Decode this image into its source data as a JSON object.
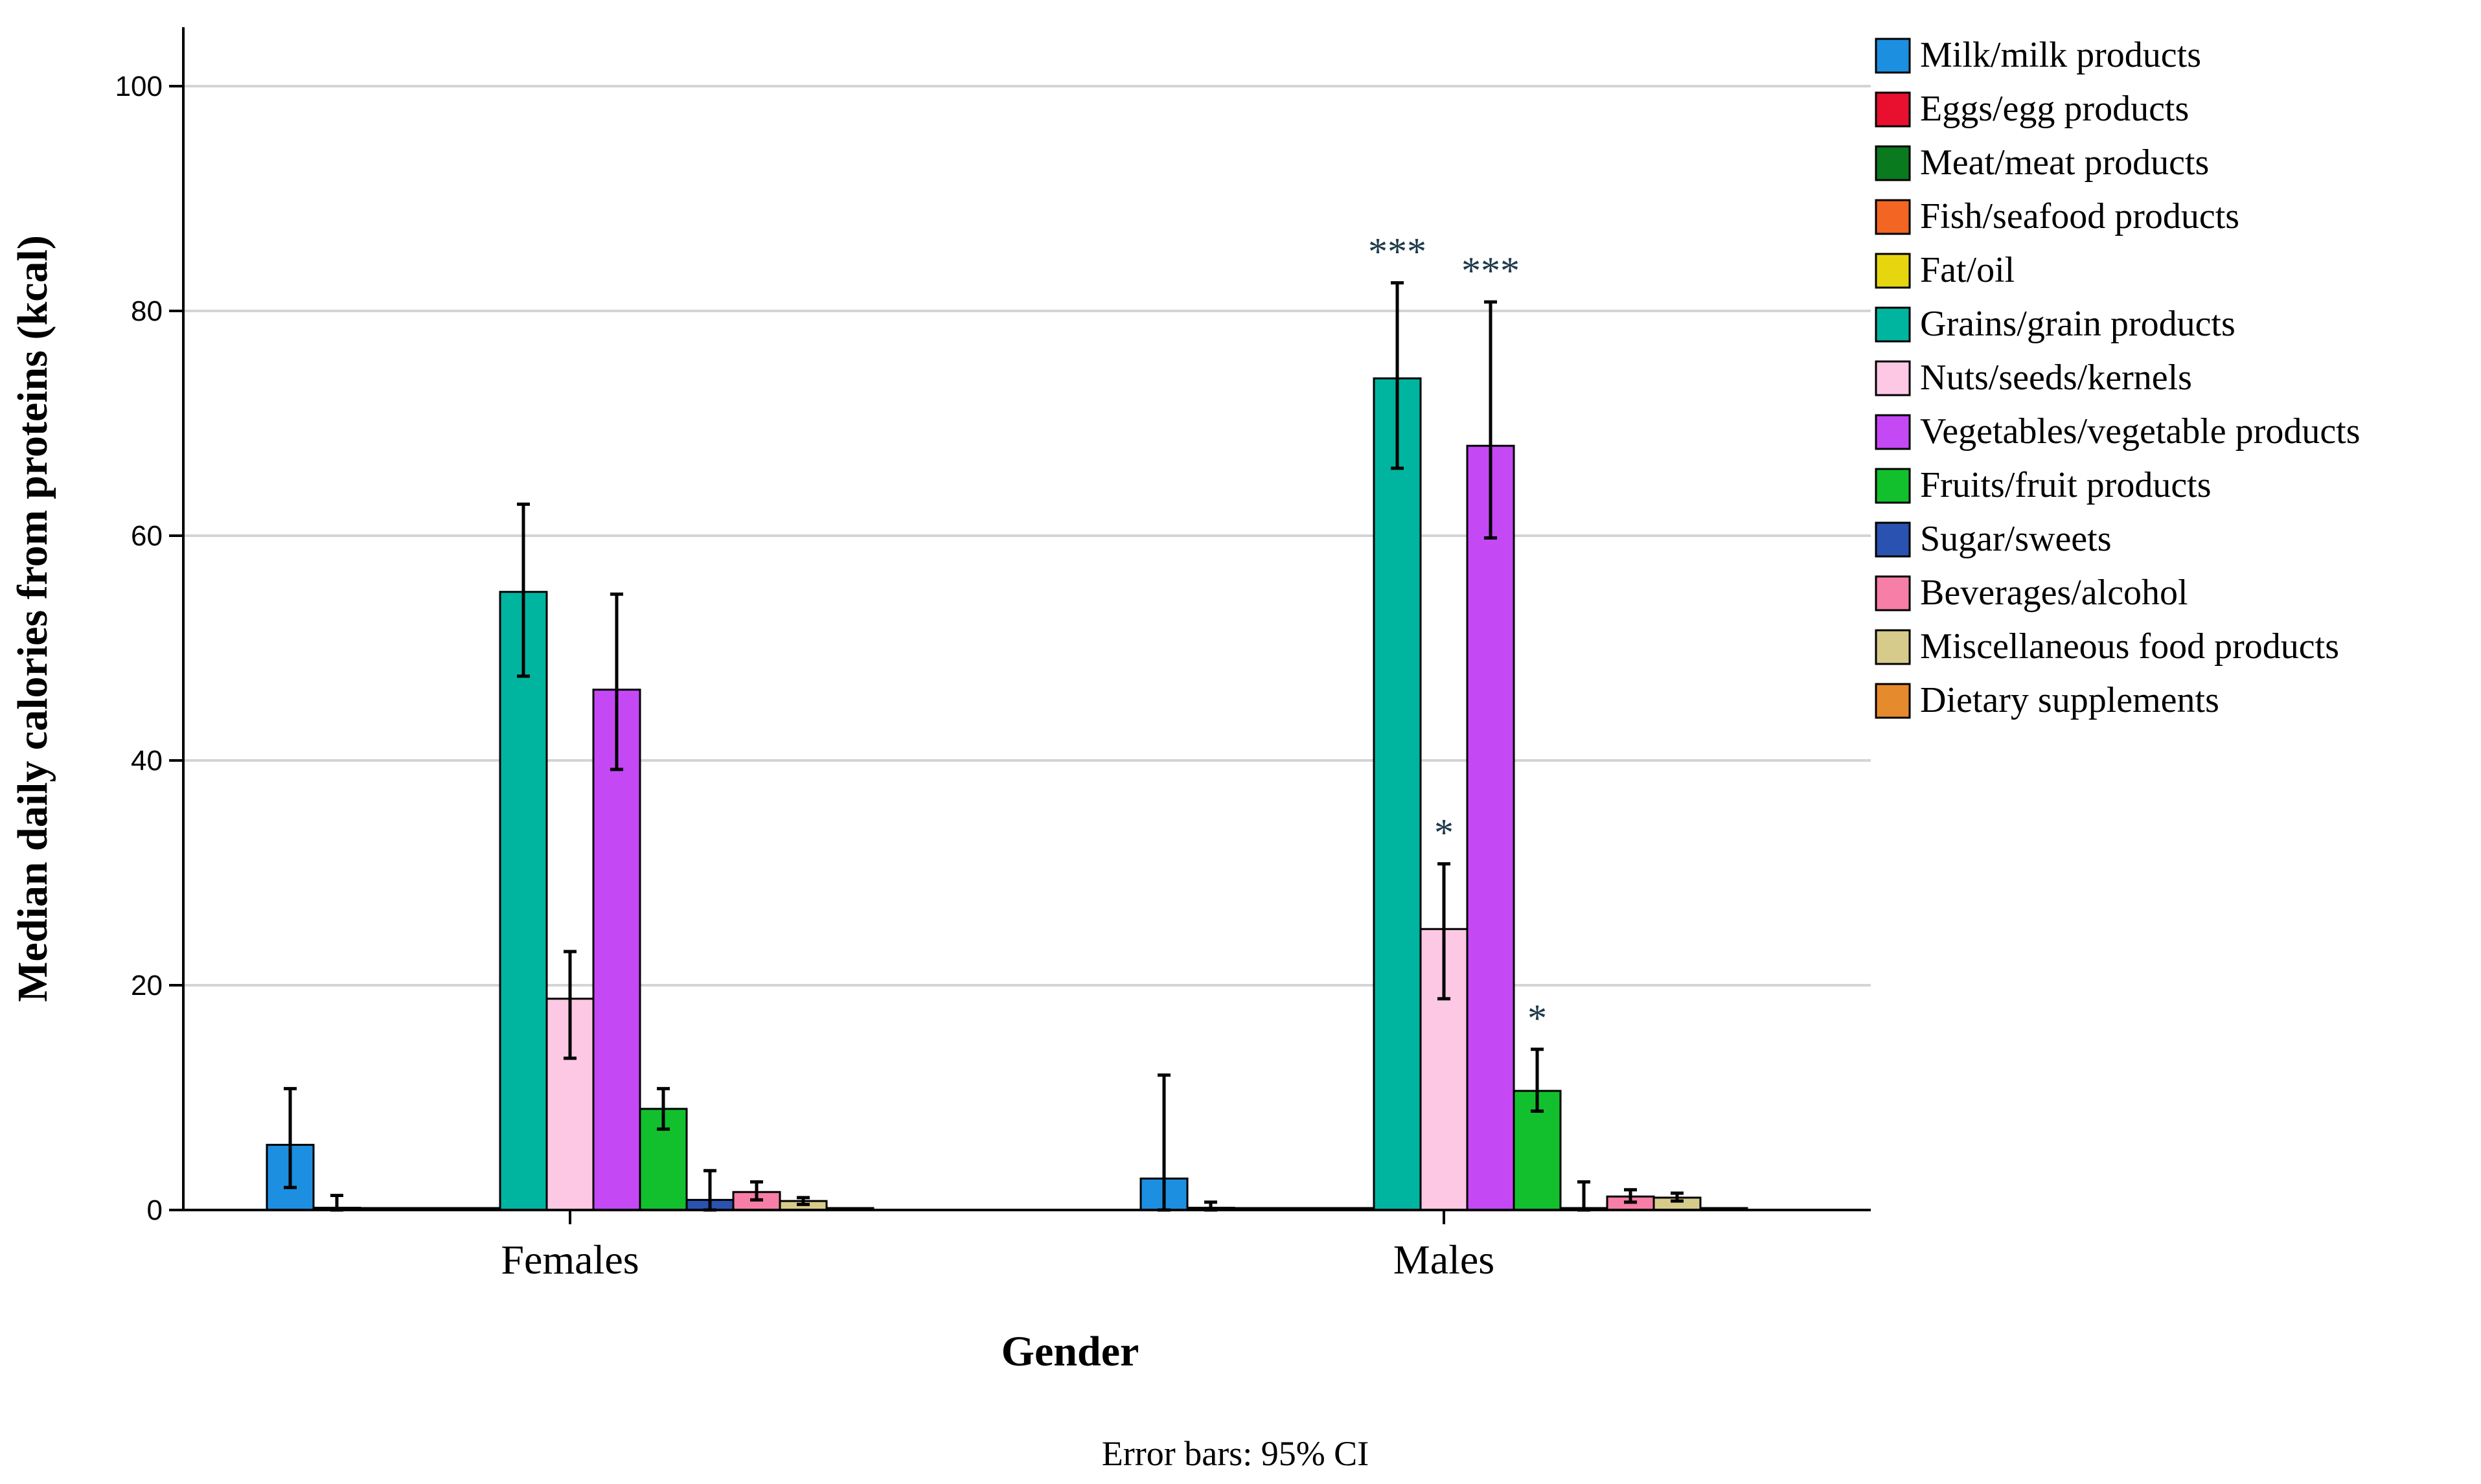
{
  "chart_data": {
    "type": "bar",
    "ylabel": "Median daily calories from proteins (kcal)",
    "xlabel": "Gender",
    "note": "Error bars: 95% CI",
    "ylim": [
      0,
      105
    ],
    "yticks": [
      0,
      20,
      40,
      60,
      80,
      100
    ],
    "grid": true,
    "legend_position": "right",
    "categories": [
      "Females",
      "Males"
    ],
    "series": [
      {
        "name": "Milk/milk products",
        "color": "#1c8fe0",
        "values": [
          5.8,
          2.8
        ],
        "ci": [
          [
            2.0,
            10.8
          ],
          [
            0.0,
            12.0
          ]
        ]
      },
      {
        "name": "Eggs/egg products",
        "color": "#e8102e",
        "values": [
          0.2,
          0.2
        ],
        "ci": [
          [
            0.0,
            1.3
          ],
          [
            0.0,
            0.7
          ]
        ]
      },
      {
        "name": "Meat/meat products",
        "color": "#0a7a1f",
        "values": [
          0.1,
          0.1
        ],
        "ci": [
          null,
          null
        ]
      },
      {
        "name": "Fish/seafood products",
        "color": "#f26522",
        "values": [
          0.1,
          0.1
        ],
        "ci": [
          null,
          null
        ]
      },
      {
        "name": "Fat/oil",
        "color": "#e6d60f",
        "values": [
          0.1,
          0.1
        ],
        "ci": [
          null,
          null
        ]
      },
      {
        "name": "Grains/grain products",
        "color": "#00b5a0",
        "values": [
          55.0,
          74.0
        ],
        "ci": [
          [
            47.5,
            62.8
          ],
          [
            66.0,
            82.5
          ]
        ]
      },
      {
        "name": "Nuts/seeds/kernels",
        "color": "#fcc8e4",
        "values": [
          18.8,
          25.0
        ],
        "ci": [
          [
            13.5,
            23.0
          ],
          [
            18.8,
            30.8
          ]
        ]
      },
      {
        "name": "Vegetables/vegetable products",
        "color": "#c548f5",
        "values": [
          46.3,
          68.0
        ],
        "ci": [
          [
            39.2,
            54.8
          ],
          [
            59.8,
            80.8
          ]
        ]
      },
      {
        "name": "Fruits/fruit products",
        "color": "#12c02e",
        "values": [
          9.0,
          10.6
        ],
        "ci": [
          [
            7.2,
            10.8
          ],
          [
            8.8,
            14.3
          ]
        ]
      },
      {
        "name": "Sugar/sweets",
        "color": "#2a52b0",
        "values": [
          0.9,
          0.1
        ],
        "ci": [
          [
            0.0,
            3.5
          ],
          [
            0.0,
            2.5
          ]
        ]
      },
      {
        "name": "Beverages/alcohol",
        "color": "#f77ea6",
        "values": [
          1.6,
          1.2
        ],
        "ci": [
          [
            0.9,
            2.5
          ],
          [
            0.7,
            1.8
          ]
        ]
      },
      {
        "name": "Miscellaneous food products",
        "color": "#d6cb8a",
        "values": [
          0.8,
          1.1
        ],
        "ci": [
          [
            0.5,
            1.1
          ],
          [
            0.8,
            1.5
          ]
        ]
      },
      {
        "name": "Dietary supplements",
        "color": "#e68a2e",
        "values": [
          0.1,
          0.1
        ],
        "ci": [
          null,
          null
        ]
      }
    ],
    "annotations": [
      {
        "category": "Males",
        "series": "Grains/grain products",
        "text": "***"
      },
      {
        "category": "Males",
        "series": "Vegetables/vegetable products",
        "text": "***"
      },
      {
        "category": "Males",
        "series": "Nuts/seeds/kernels",
        "text": "*"
      },
      {
        "category": "Males",
        "series": "Fruits/fruit products",
        "text": "*"
      }
    ]
  }
}
